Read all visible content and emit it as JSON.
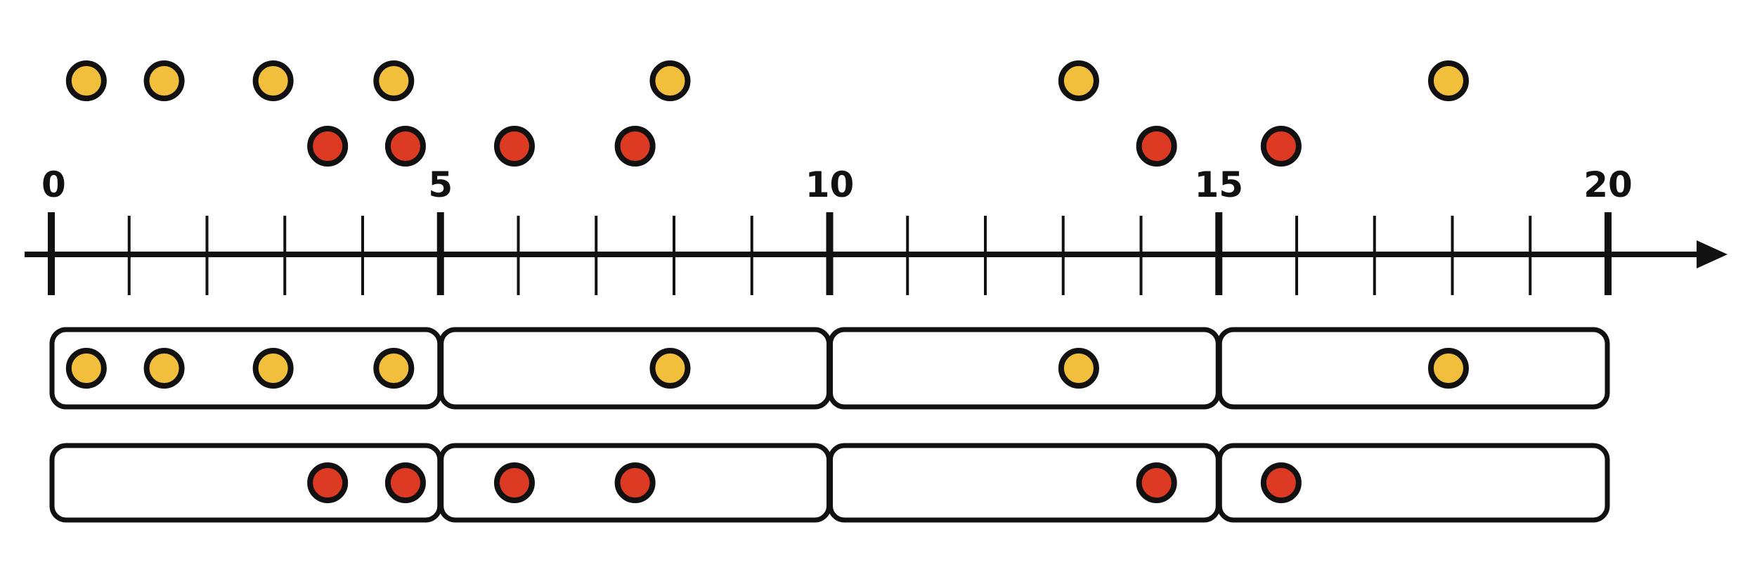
{
  "axis": {
    "min": 0,
    "max": 20,
    "minor_step": 1,
    "major_step": 5,
    "tick_labels": [
      {
        "value": 0,
        "text": "0"
      },
      {
        "value": 5,
        "text": "5"
      },
      {
        "value": 10,
        "text": "10"
      },
      {
        "value": 15,
        "text": "15"
      },
      {
        "value": 20,
        "text": "20"
      }
    ]
  },
  "colors": {
    "line": "#111111",
    "yellow_point": "#F2BF3C",
    "red_point": "#DD3A24",
    "background": "#FFFFFF"
  },
  "series": [
    {
      "id": "yellow",
      "values": [
        0.45,
        1.45,
        2.85,
        4.4,
        7.95,
        13.2,
        17.95
      ]
    },
    {
      "id": "red",
      "values": [
        3.55,
        4.55,
        5.95,
        7.5,
        14.2,
        15.8
      ]
    }
  ],
  "bins": [
    {
      "start": 0,
      "end": 5
    },
    {
      "start": 5,
      "end": 10
    },
    {
      "start": 10,
      "end": 15
    },
    {
      "start": 15,
      "end": 20
    }
  ]
}
